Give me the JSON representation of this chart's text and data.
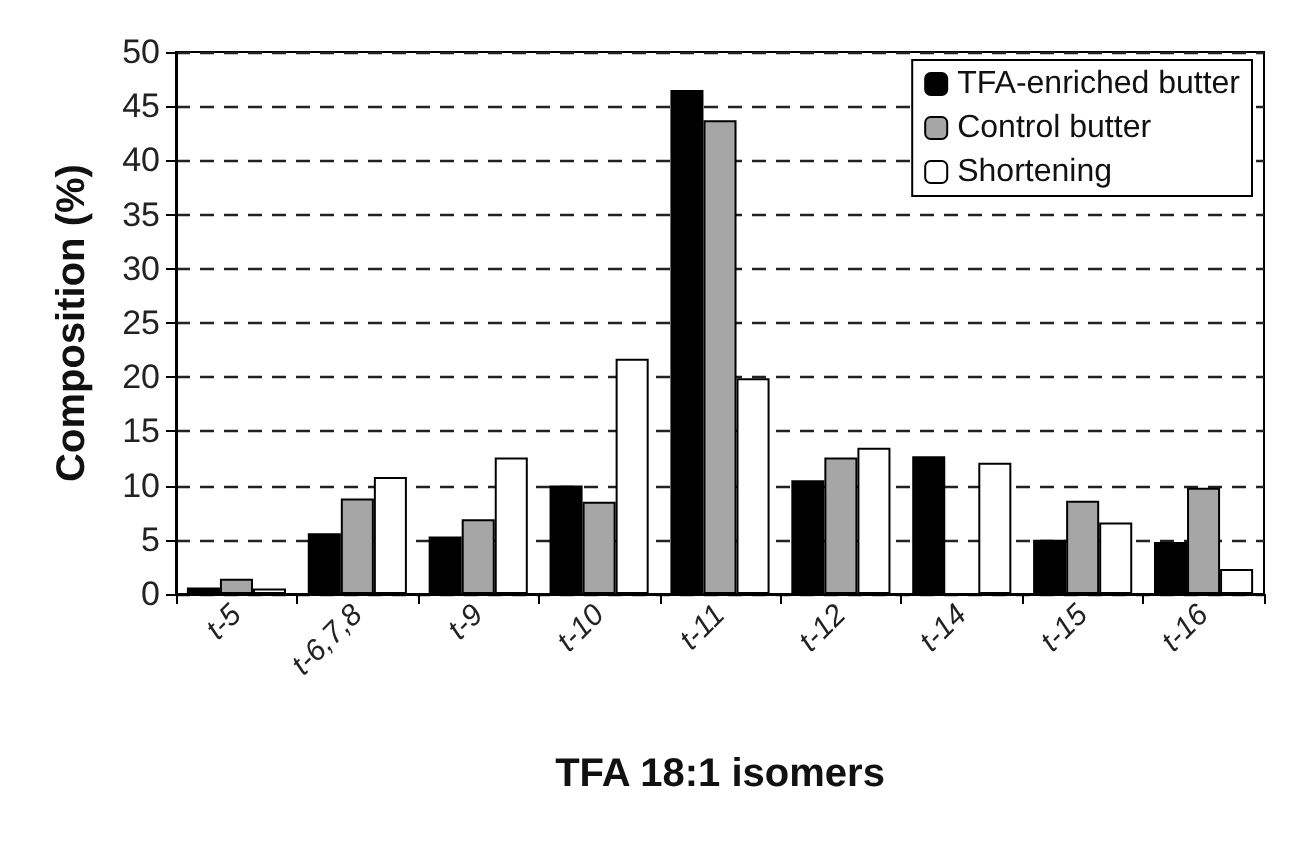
{
  "chart_data": {
    "type": "bar",
    "xlabel": "TFA 18:1 isomers",
    "ylabel": "Composition (%)",
    "categories": [
      "t-5",
      "t-6,7,8",
      "t-9",
      "t-10",
      "t-11",
      "t-12",
      "t-14",
      "t-15",
      "t-16"
    ],
    "series": [
      {
        "name": "TFA-enriched butter",
        "color": "#000000",
        "values": [
          0.6,
          5.6,
          5.3,
          10.0,
          46.5,
          10.5,
          12.7,
          5.0,
          4.8
        ]
      },
      {
        "name": "Control butter",
        "color": "#a6a6a6",
        "values": [
          1.4,
          8.8,
          6.9,
          8.5,
          43.7,
          12.6,
          null,
          8.6,
          9.8
        ]
      },
      {
        "name": "Shortening",
        "color": "#ffffff",
        "values": [
          0.5,
          10.8,
          12.6,
          21.7,
          19.9,
          13.5,
          12.1,
          6.6,
          2.3
        ]
      }
    ],
    "ylim": [
      0,
      50
    ],
    "yticks": [
      0,
      5,
      10,
      15,
      20,
      25,
      30,
      35,
      40,
      45,
      50
    ],
    "grid": "y",
    "legend": "top right"
  }
}
